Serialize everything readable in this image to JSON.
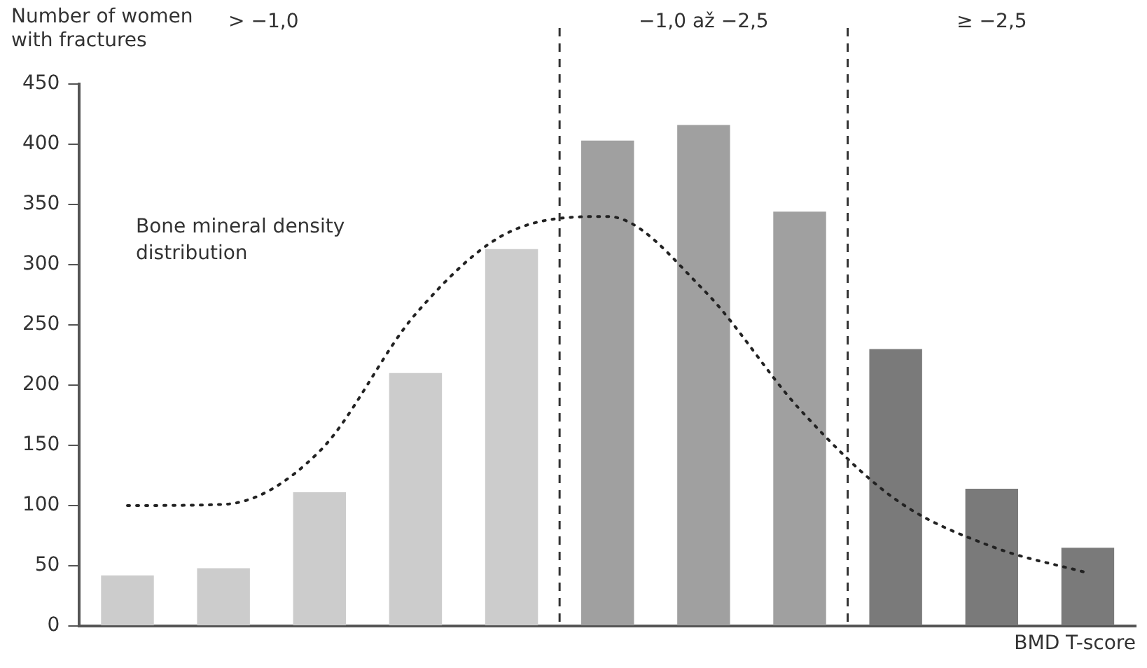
{
  "chart_data": {
    "type": "bar",
    "ylabel": "Number of women with fractures",
    "xlabel": "BMD T-score",
    "categories": [
      null,
      null,
      null,
      null,
      null,
      null,
      null,
      null,
      null,
      null,
      null
    ],
    "series": [
      {
        "values": [
          42,
          48,
          111,
          210,
          313,
          403,
          416,
          344,
          230,
          114,
          65
        ],
        "colors": [
          "#cccccc",
          "#cccccc",
          "#cccccc",
          "#cccccc",
          "#cccccc",
          "#a0a0a0",
          "#a0a0a0",
          "#a0a0a0",
          "#7a7a7a",
          "#7a7a7a",
          "#7a7a7a"
        ]
      },
      {
        "type": "line",
        "name": "Bone mineral density distribution",
        "color": "#222222",
        "line_style": "dotted",
        "marker": "none",
        "values": [
          100,
          101,
          145,
          259,
          328,
          340,
          279,
          180,
          105,
          66,
          44
        ]
      }
    ],
    "ylim": [
      0,
      450
    ],
    "yticks": [
      0,
      50,
      100,
      150,
      200,
      250,
      300,
      350,
      400,
      450
    ],
    "grid": false,
    "legend": false,
    "annotations": [
      "> −1,0",
      "−1,0 až −2,5",
      "≥ −2,5"
    ]
  }
}
